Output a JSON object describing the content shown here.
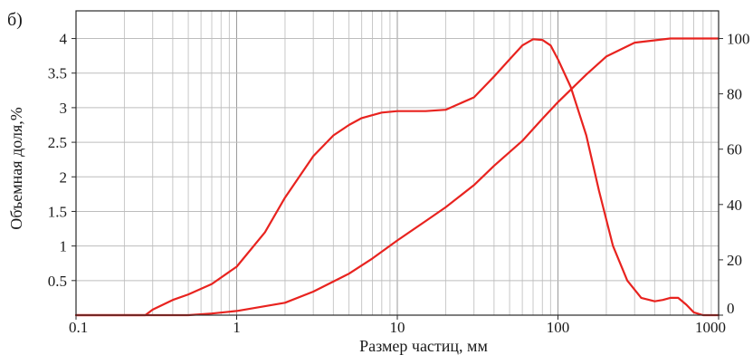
{
  "panel_label": "б)",
  "chart_data": {
    "type": "line",
    "xlabel": "Размер частиц, мм",
    "ylabel": "Объемная доля,%",
    "x_scale": "log",
    "xlim": [
      0.1,
      1000
    ],
    "ylim": [
      0,
      4.4
    ],
    "ylim_right": [
      0,
      110
    ],
    "x_ticks": [
      {
        "value": 0.1,
        "label": "0.1"
      },
      {
        "value": 1,
        "label": "1"
      },
      {
        "value": 10,
        "label": "10"
      },
      {
        "value": 100,
        "label": "100"
      },
      {
        "value": 1000,
        "label": "1000"
      }
    ],
    "y_ticks_left": [
      {
        "value": 0.5,
        "label": "0.5"
      },
      {
        "value": 1,
        "label": "1"
      },
      {
        "value": 1.5,
        "label": "1.5"
      },
      {
        "value": 2,
        "label": "2"
      },
      {
        "value": 2.5,
        "label": "2.5"
      },
      {
        "value": 3,
        "label": "3"
      },
      {
        "value": 3.5,
        "label": "3.5"
      },
      {
        "value": 4,
        "label": "4"
      }
    ],
    "y_ticks_right": [
      {
        "value": 0,
        "label": "0"
      },
      {
        "value": 20,
        "label": "20"
      },
      {
        "value": 40,
        "label": "40"
      },
      {
        "value": 60,
        "label": "60"
      },
      {
        "value": 80,
        "label": "80"
      },
      {
        "value": 100,
        "label": "100"
      }
    ],
    "grid": true,
    "color": "#e8231f",
    "series": [
      {
        "axis": "left",
        "points": [
          [
            0.1,
            0
          ],
          [
            0.27,
            0
          ],
          [
            0.3,
            0.08
          ],
          [
            0.4,
            0.22
          ],
          [
            0.5,
            0.3
          ],
          [
            0.7,
            0.45
          ],
          [
            1.0,
            0.7
          ],
          [
            1.5,
            1.2
          ],
          [
            2.0,
            1.7
          ],
          [
            3.0,
            2.3
          ],
          [
            4.0,
            2.6
          ],
          [
            5.0,
            2.75
          ],
          [
            6.0,
            2.85
          ],
          [
            8.0,
            2.93
          ],
          [
            10,
            2.95
          ],
          [
            15,
            2.95
          ],
          [
            20,
            2.97
          ],
          [
            30,
            3.15
          ],
          [
            40,
            3.45
          ],
          [
            50,
            3.7
          ],
          [
            60,
            3.9
          ],
          [
            70,
            3.99
          ],
          [
            80,
            3.98
          ],
          [
            90,
            3.9
          ],
          [
            100,
            3.7
          ],
          [
            120,
            3.3
          ],
          [
            150,
            2.6
          ],
          [
            180,
            1.8
          ],
          [
            220,
            1.0
          ],
          [
            270,
            0.5
          ],
          [
            330,
            0.25
          ],
          [
            400,
            0.2
          ],
          [
            450,
            0.22
          ],
          [
            500,
            0.25
          ],
          [
            560,
            0.25
          ],
          [
            630,
            0.15
          ],
          [
            700,
            0.04
          ],
          [
            800,
            0
          ],
          [
            1000,
            0
          ]
        ]
      },
      {
        "axis": "right",
        "points": [
          [
            0.1,
            0
          ],
          [
            0.5,
            0
          ],
          [
            0.7,
            0.6
          ],
          [
            1.0,
            1.5
          ],
          [
            2,
            4.5
          ],
          [
            3,
            8.5
          ],
          [
            5,
            15
          ],
          [
            7,
            20.5
          ],
          [
            10,
            27
          ],
          [
            15,
            34
          ],
          [
            20,
            39
          ],
          [
            30,
            47
          ],
          [
            40,
            54
          ],
          [
            60,
            63
          ],
          [
            80,
            71
          ],
          [
            100,
            77
          ],
          [
            150,
            87
          ],
          [
            200,
            93.5
          ],
          [
            300,
            98.5
          ],
          [
            500,
            100
          ],
          [
            1000,
            100
          ]
        ]
      }
    ]
  }
}
